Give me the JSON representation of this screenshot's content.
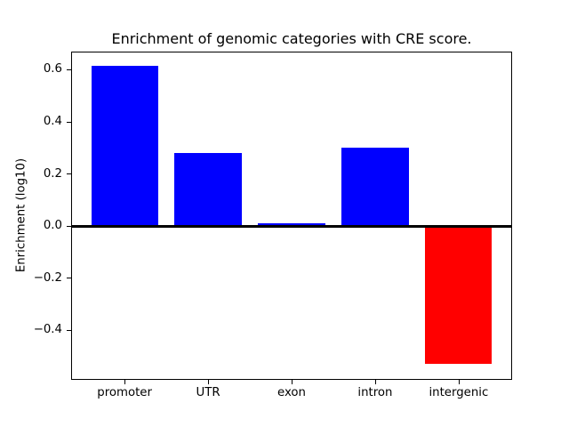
{
  "figure": {
    "background": "#ffffff"
  },
  "chart_data": {
    "type": "bar",
    "title": "Enrichment of genomic categories with CRE score.",
    "xlabel": "",
    "ylabel": "Enrichment (log10)",
    "categories": [
      "promoter",
      "UTR",
      "exon",
      "intron",
      "intergenic"
    ],
    "values": [
      0.615,
      0.28,
      0.012,
      0.3,
      -0.53
    ],
    "bar_colors": [
      "#0000ff",
      "#0000ff",
      "#0000ff",
      "#0000ff",
      "#ff0000"
    ],
    "positive_color": "#0000ff",
    "negative_color": "#ff0000",
    "ylim": [
      -0.591,
      0.67
    ],
    "yticks": [
      0.6,
      0.4,
      0.2,
      0.0,
      -0.2,
      -0.4
    ],
    "ytick_labels": [
      "0.6",
      "0.4",
      "0.2",
      "0.0",
      "−0.2",
      "−0.4"
    ],
    "bar_width_fraction": 0.8,
    "x_margin_fraction": 0.24,
    "zero_line": true,
    "grid": false,
    "legend": false,
    "axis_color": "#000000",
    "text_color": "#000000"
  }
}
